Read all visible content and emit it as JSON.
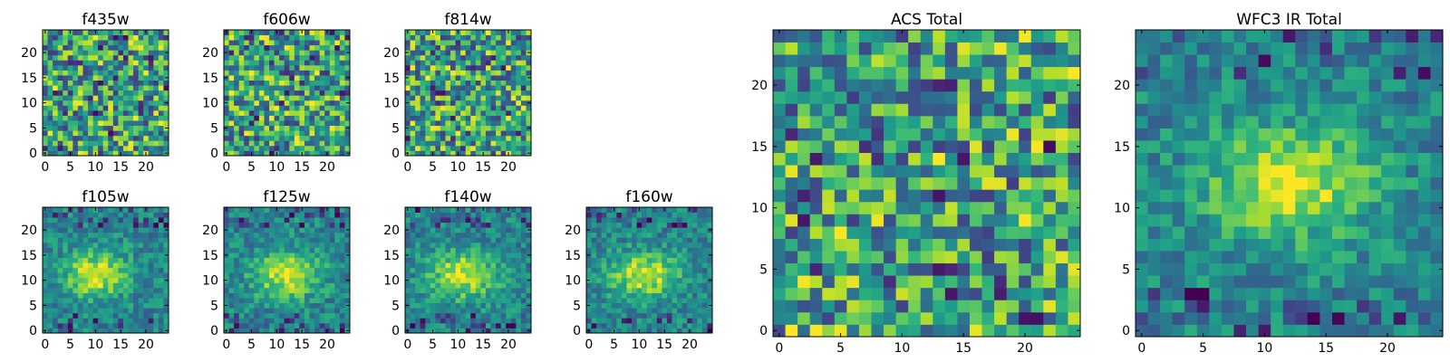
{
  "chart_data": [
    {
      "type": "heatmap",
      "title": "f435w",
      "x_ticks": [
        "0",
        "5",
        "10",
        "15",
        "20"
      ],
      "y_ticks": [
        "0",
        "5",
        "10",
        "15",
        "20"
      ],
      "xlim": [
        -0.5,
        24.5
      ],
      "ylim": [
        -0.5,
        24.5
      ],
      "grid_size": 25,
      "colormap": "viridis",
      "pattern": "noise"
    },
    {
      "type": "heatmap",
      "title": "f606w",
      "x_ticks": [
        "0",
        "5",
        "10",
        "15",
        "20"
      ],
      "y_ticks": [
        "0",
        "5",
        "10",
        "15",
        "20"
      ],
      "xlim": [
        -0.5,
        24.5
      ],
      "ylim": [
        -0.5,
        24.5
      ],
      "grid_size": 25,
      "colormap": "viridis",
      "pattern": "noise"
    },
    {
      "type": "heatmap",
      "title": "f814w",
      "x_ticks": [
        "0",
        "5",
        "10",
        "15",
        "20"
      ],
      "y_ticks": [
        "0",
        "5",
        "10",
        "15",
        "20"
      ],
      "xlim": [
        -0.5,
        24.5
      ],
      "ylim": [
        -0.5,
        24.5
      ],
      "grid_size": 25,
      "colormap": "viridis",
      "pattern": "noise"
    },
    {
      "type": "heatmap",
      "title": "f105w",
      "x_ticks": [
        "0",
        "5",
        "10",
        "15",
        "20"
      ],
      "y_ticks": [
        "0",
        "5",
        "10",
        "15",
        "20"
      ],
      "xlim": [
        -0.5,
        24.5
      ],
      "ylim": [
        -0.5,
        24.5
      ],
      "grid_size": 25,
      "colormap": "viridis",
      "pattern": "blob",
      "blob_center": [
        10,
        11
      ]
    },
    {
      "type": "heatmap",
      "title": "f125w",
      "x_ticks": [
        "0",
        "5",
        "10",
        "15",
        "20"
      ],
      "y_ticks": [
        "0",
        "5",
        "10",
        "15",
        "20"
      ],
      "xlim": [
        -0.5,
        24.5
      ],
      "ylim": [
        -0.5,
        24.5
      ],
      "grid_size": 25,
      "colormap": "viridis",
      "pattern": "blob",
      "blob_center": [
        12,
        11
      ]
    },
    {
      "type": "heatmap",
      "title": "f140w",
      "x_ticks": [
        "0",
        "5",
        "10",
        "15",
        "20"
      ],
      "y_ticks": [
        "0",
        "5",
        "10",
        "15",
        "20"
      ],
      "xlim": [
        -0.5,
        24.5
      ],
      "ylim": [
        -0.5,
        24.5
      ],
      "grid_size": 25,
      "colormap": "viridis",
      "pattern": "blob",
      "blob_center": [
        11,
        11
      ]
    },
    {
      "type": "heatmap",
      "title": "f160w",
      "x_ticks": [
        "0",
        "5",
        "10",
        "15",
        "20"
      ],
      "y_ticks": [
        "0",
        "5",
        "10",
        "15",
        "20"
      ],
      "xlim": [
        -0.5,
        24.5
      ],
      "ylim": [
        -0.5,
        24.5
      ],
      "grid_size": 25,
      "colormap": "viridis",
      "pattern": "blob",
      "blob_center": [
        11,
        11
      ]
    },
    {
      "type": "heatmap",
      "title": "ACS Total",
      "x_ticks": [
        "0",
        "5",
        "10",
        "15",
        "20"
      ],
      "y_ticks": [
        "0",
        "5",
        "10",
        "15",
        "20"
      ],
      "xlim": [
        -0.5,
        24.5
      ],
      "ylim": [
        -0.5,
        24.5
      ],
      "grid_size": 25,
      "colormap": "viridis",
      "pattern": "noise"
    },
    {
      "type": "heatmap",
      "title": "WFC3 IR Total",
      "x_ticks": [
        "0",
        "5",
        "10",
        "15",
        "20"
      ],
      "y_ticks": [
        "0",
        "5",
        "10",
        "15",
        "20"
      ],
      "xlim": [
        -0.5,
        24.5
      ],
      "ylim": [
        -0.5,
        24.5
      ],
      "grid_size": 25,
      "colormap": "viridis",
      "pattern": "blob",
      "blob_center": [
        12,
        12
      ]
    }
  ]
}
